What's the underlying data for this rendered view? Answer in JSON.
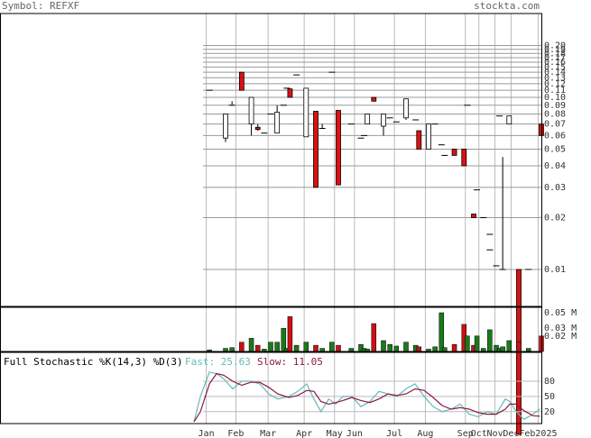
{
  "header": {
    "symbol": "Symbol: REFXF",
    "site": "stockta.com"
  },
  "chart_data": [
    {
      "type": "candlestick",
      "log_scale": true,
      "grid": true,
      "up_color": "#ffffff",
      "down_color": "#dd1111",
      "x": [
        0.5,
        3,
        4,
        5.5,
        7,
        8,
        9,
        10,
        11,
        12,
        12.5,
        13,
        14,
        15.5,
        17,
        18,
        19.5,
        20.5,
        22.5,
        24,
        24.5,
        25,
        26,
        27.5,
        28.5,
        29.5,
        31,
        32.5,
        33,
        34.5,
        35.5,
        36.5,
        37,
        38.5,
        40,
        40.5,
        41.5,
        42,
        43,
        44,
        44,
        45,
        45.5,
        46,
        47,
        48.5,
        50,
        52
      ],
      "open": [
        0.11,
        0.058,
        0.09,
        0.14,
        0.07,
        0.067,
        0.062,
        0.08,
        0.062,
        0.09,
        0.113,
        0.112,
        0.135,
        0.059,
        0.083,
        0.066,
        0.14,
        0.084,
        0.07,
        0.058,
        0.06,
        0.07,
        0.1,
        0.068,
        0.076,
        0.072,
        0.076,
        0.074,
        0.064,
        0.05,
        0.07,
        0.053,
        0.046,
        0.05,
        0.05,
        0.09,
        0.021,
        0.029,
        0.02,
        0.016,
        0.013,
        0.0105,
        0.078,
        0.01,
        0.07,
        0.01,
        0.01,
        0.07
      ],
      "high": [
        0.11,
        0.08,
        0.095,
        0.14,
        0.1,
        0.07,
        0.062,
        0.08,
        0.09,
        0.09,
        0.113,
        0.112,
        0.135,
        0.113,
        0.083,
        0.07,
        0.14,
        0.084,
        0.07,
        0.058,
        0.06,
        0.08,
        0.1,
        0.08,
        0.076,
        0.072,
        0.098,
        0.074,
        0.064,
        0.07,
        0.07,
        0.053,
        0.046,
        0.05,
        0.05,
        0.09,
        0.021,
        0.029,
        0.02,
        0.016,
        0.013,
        0.0105,
        0.078,
        0.045,
        0.078,
        0.01,
        0.01,
        0.07
      ],
      "low": [
        0.11,
        0.055,
        0.09,
        0.11,
        0.06,
        0.064,
        0.062,
        0.08,
        0.062,
        0.09,
        0.113,
        0.1,
        0.135,
        0.059,
        0.03,
        0.066,
        0.14,
        0.031,
        0.07,
        0.058,
        0.06,
        0.07,
        0.095,
        0.06,
        0.076,
        0.072,
        0.074,
        0.074,
        0.05,
        0.05,
        0.07,
        0.053,
        0.046,
        0.046,
        0.04,
        0.09,
        0.02,
        0.029,
        0.02,
        0.016,
        0.013,
        0.0105,
        0.078,
        0.01,
        0.07,
        0.0011,
        0.01,
        0.06
      ],
      "close": [
        0.11,
        0.08,
        0.09,
        0.11,
        0.1,
        0.065,
        0.062,
        0.08,
        0.082,
        0.09,
        0.113,
        0.1,
        0.135,
        0.113,
        0.03,
        0.066,
        0.14,
        0.031,
        0.07,
        0.058,
        0.06,
        0.08,
        0.095,
        0.08,
        0.076,
        0.072,
        0.098,
        0.074,
        0.05,
        0.07,
        0.07,
        0.053,
        0.046,
        0.046,
        0.04,
        0.09,
        0.02,
        0.029,
        0.02,
        0.016,
        0.013,
        0.0105,
        0.078,
        0.01,
        0.078,
        0.0011,
        0.01,
        0.06
      ],
      "xlim": [
        -32,
        52
      ],
      "xticks": [
        {
          "value": 0,
          "label": "Jan"
        },
        {
          "value": 4.6,
          "label": "Feb"
        },
        {
          "value": 9.6,
          "label": "Mar"
        },
        {
          "value": 15.2,
          "label": "Apr"
        },
        {
          "value": 19.9,
          "label": "May"
        },
        {
          "value": 23,
          "label": "Jun"
        },
        {
          "value": 29.2,
          "label": "Jul"
        },
        {
          "value": 34,
          "label": "Aug"
        },
        {
          "value": 40.2,
          "label": "Sep"
        },
        {
          "value": 42.3,
          "label": "Oct"
        },
        {
          "value": 44.8,
          "label": "Nov"
        },
        {
          "value": 47.3,
          "label": "Dec"
        },
        {
          "value": 51.5,
          "label": "Feb2025"
        }
      ],
      "ylim": [
        0.0061,
        0.307
      ],
      "yticks": [
        {
          "value": 0.2,
          "label": "0.20"
        },
        0.19,
        0.18,
        0.17,
        0.16,
        0.15,
        0.14,
        0.13,
        0.12,
        0.11,
        {
          "value": 0.1,
          "label": "0.10"
        },
        0.09,
        0.08,
        0.07,
        0.06,
        0.05,
        0.04,
        0.03,
        0.02,
        0.01
      ]
    },
    {
      "type": "bar",
      "up_color": "#1a7a1a",
      "down_color": "#cc1111",
      "values": [
        0.002,
        0.004,
        0.005,
        0.012,
        0.017,
        0.008,
        0.003,
        0.012,
        0.012,
        0.03,
        0.004,
        0.045,
        0.008,
        0.012,
        0.008,
        0.004,
        0.012,
        0.008,
        0.004,
        0.009,
        0.004,
        0.003,
        0.036,
        0.014,
        0.009,
        0.007,
        0.012,
        0.008,
        0.006,
        0.003,
        0.006,
        0.05,
        0.005,
        0.009,
        0.035,
        0.02,
        0.008,
        0.02,
        0.004,
        0.003,
        0.028,
        0.008,
        0.004,
        0.006,
        0.014,
        0.012,
        0.004,
        0.02
      ],
      "ylim": [
        0,
        0.057
      ],
      "yticks": [
        {
          "value": 0.05,
          "label": "0.05 M"
        },
        {
          "value": 0.03,
          "label": "0.03 M"
        },
        {
          "value": 0.02,
          "label": "0.02 M"
        }
      ]
    },
    {
      "type": "line",
      "title": "Full Stochastic %K(14,3) %D(3)",
      "x": [
        -1.9,
        -0.9,
        0.5,
        1.6,
        2.7,
        4.1,
        5.5,
        6.9,
        8.3,
        9.7,
        11.1,
        12.8,
        14.2,
        15.6,
        16.7,
        17.8,
        19,
        20.1,
        21.2,
        22.6,
        24,
        25.4,
        26.8,
        28.2,
        29.6,
        31,
        32.4,
        33.8,
        35.2,
        36.6,
        38,
        39.4,
        40.8,
        42.2,
        43.6,
        45,
        46.4,
        47.1,
        48.1,
        49.3,
        50.7,
        51.8
      ],
      "series": [
        {
          "name": "Fast: 25.63",
          "color": "#66b8b8",
          "values": [
            0,
            50,
            98,
            95,
            85,
            65,
            80,
            80,
            75,
            55,
            45,
            50,
            60,
            75,
            45,
            20,
            45,
            35,
            50,
            50,
            30,
            40,
            60,
            55,
            50,
            65,
            75,
            50,
            30,
            20,
            25,
            35,
            15,
            10,
            20,
            15,
            45,
            40,
            20,
            5,
            15,
            25.63
          ]
        },
        {
          "name": "Slow: 11.05",
          "color": "#8b1a3a",
          "values": [
            0,
            20,
            75,
            95,
            92,
            80,
            72,
            78,
            78,
            68,
            55,
            48,
            52,
            62,
            60,
            40,
            35,
            38,
            42,
            48,
            42,
            38,
            45,
            55,
            52,
            55,
            65,
            62,
            48,
            32,
            25,
            28,
            25,
            18,
            15,
            15,
            25,
            35,
            35,
            22,
            12,
            11.05
          ]
        }
      ],
      "ylim": [
        -3.5,
        137
      ],
      "yticks": [
        80,
        50,
        20
      ]
    }
  ]
}
